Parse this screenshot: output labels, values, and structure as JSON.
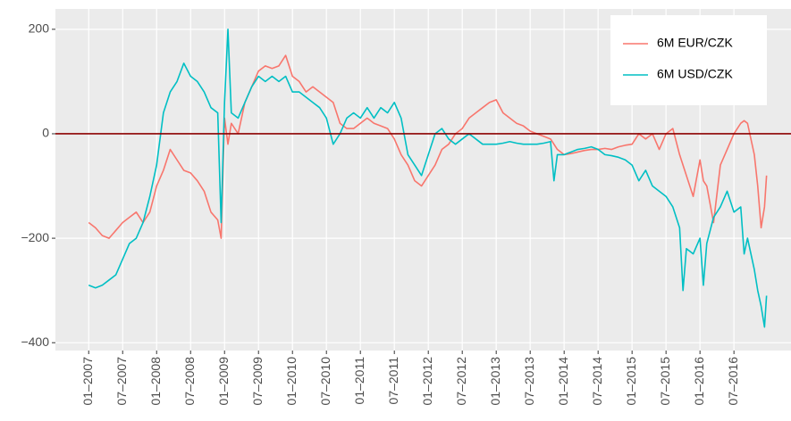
{
  "chart_data": {
    "type": "line",
    "x": [
      2007.0,
      2007.1,
      2007.2,
      2007.3,
      2007.4,
      2007.5,
      2007.6,
      2007.7,
      2007.8,
      2007.9,
      2008.0,
      2008.1,
      2008.2,
      2008.3,
      2008.4,
      2008.5,
      2008.6,
      2008.7,
      2008.8,
      2008.9,
      2008.95,
      2009.0,
      2009.05,
      2009.1,
      2009.2,
      2009.3,
      2009.4,
      2009.5,
      2009.6,
      2009.7,
      2009.8,
      2009.9,
      2010.0,
      2010.1,
      2010.2,
      2010.3,
      2010.4,
      2010.5,
      2010.6,
      2010.7,
      2010.8,
      2010.9,
      2011.0,
      2011.1,
      2011.2,
      2011.3,
      2011.4,
      2011.5,
      2011.6,
      2011.7,
      2011.8,
      2011.9,
      2012.0,
      2012.1,
      2012.2,
      2012.3,
      2012.4,
      2012.5,
      2012.6,
      2012.7,
      2012.8,
      2012.9,
      2013.0,
      2013.1,
      2013.2,
      2013.3,
      2013.4,
      2013.5,
      2013.6,
      2013.7,
      2013.8,
      2013.85,
      2013.9,
      2014.0,
      2014.1,
      2014.2,
      2014.3,
      2014.4,
      2014.5,
      2014.6,
      2014.7,
      2014.8,
      2014.9,
      2015.0,
      2015.1,
      2015.2,
      2015.3,
      2015.4,
      2015.5,
      2015.6,
      2015.7,
      2015.75,
      2015.8,
      2015.9,
      2016.0,
      2016.05,
      2016.1,
      2016.2,
      2016.3,
      2016.4,
      2016.5,
      2016.6,
      2016.65,
      2016.7,
      2016.8,
      2016.85,
      2016.9,
      2016.95,
      2016.98
    ],
    "series": [
      {
        "name": "6M EUR/CZK",
        "color": "#f8766d",
        "values": [
          -170,
          -180,
          -195,
          -200,
          -185,
          -170,
          -160,
          -150,
          -170,
          -150,
          -100,
          -70,
          -30,
          -50,
          -70,
          -75,
          -90,
          -110,
          -150,
          -165,
          -200,
          30,
          -20,
          20,
          0,
          60,
          90,
          120,
          130,
          125,
          130,
          150,
          110,
          100,
          80,
          90,
          80,
          70,
          60,
          20,
          10,
          10,
          20,
          30,
          20,
          15,
          10,
          -10,
          -40,
          -60,
          -90,
          -100,
          -80,
          -60,
          -30,
          -20,
          0,
          10,
          30,
          40,
          50,
          60,
          65,
          40,
          30,
          20,
          15,
          5,
          0,
          -5,
          -10,
          -20,
          -30,
          -40,
          -38,
          -35,
          -32,
          -30,
          -30,
          -28,
          -30,
          -25,
          -22,
          -20,
          0,
          -10,
          0,
          -30,
          0,
          10,
          -40,
          -60,
          -80,
          -120,
          -50,
          -90,
          -100,
          -170,
          -60,
          -30,
          0,
          20,
          25,
          20,
          -40,
          -100,
          -180,
          -140,
          -80
        ]
      },
      {
        "name": "6M USD/CZK",
        "color": "#00bfc4",
        "values": [
          -290,
          -295,
          -290,
          -280,
          -270,
          -240,
          -210,
          -200,
          -170,
          -120,
          -60,
          40,
          80,
          100,
          135,
          110,
          100,
          80,
          50,
          40,
          -170,
          60,
          200,
          40,
          30,
          60,
          90,
          110,
          100,
          110,
          100,
          110,
          80,
          80,
          70,
          60,
          50,
          30,
          -20,
          0,
          30,
          40,
          30,
          50,
          30,
          50,
          40,
          60,
          30,
          -40,
          -60,
          -80,
          -40,
          0,
          10,
          -10,
          -20,
          -10,
          0,
          -10,
          -20,
          -20,
          -20,
          -18,
          -15,
          -18,
          -20,
          -20,
          -20,
          -18,
          -15,
          -90,
          -40,
          -40,
          -35,
          -30,
          -28,
          -25,
          -30,
          -40,
          -42,
          -45,
          -50,
          -60,
          -90,
          -70,
          -100,
          -110,
          -120,
          -140,
          -180,
          -300,
          -220,
          -230,
          -200,
          -290,
          -210,
          -160,
          -140,
          -110,
          -150,
          -140,
          -230,
          -200,
          -260,
          -300,
          -330,
          -370,
          -310
        ]
      }
    ],
    "xlim": [
      2006.51,
      2017.34
    ],
    "xticks": [
      {
        "value": 2007,
        "label": "01–2007"
      },
      {
        "value": 2007.5,
        "label": "07–2007"
      },
      {
        "value": 2008,
        "label": "01–2008"
      },
      {
        "value": 2008.5,
        "label": "07–2008"
      },
      {
        "value": 2009,
        "label": "01–2009"
      },
      {
        "value": 2009.5,
        "label": "07–2009"
      },
      {
        "value": 2010,
        "label": "01–2010"
      },
      {
        "value": 2010.5,
        "label": "07–2010"
      },
      {
        "value": 2011,
        "label": "01–2011"
      },
      {
        "value": 2011.5,
        "label": "07–2011"
      },
      {
        "value": 2012,
        "label": "01–2012"
      },
      {
        "value": 2012.5,
        "label": "07–2012"
      },
      {
        "value": 2013,
        "label": "01–2013"
      },
      {
        "value": 2013.5,
        "label": "07–2013"
      },
      {
        "value": 2014,
        "label": "01–2014"
      },
      {
        "value": 2014.5,
        "label": "07–2014"
      },
      {
        "value": 2015,
        "label": "01–2015"
      },
      {
        "value": 2015.5,
        "label": "07–2015"
      },
      {
        "value": 2016,
        "label": "01–2016"
      },
      {
        "value": 2016.5,
        "label": "07–2016"
      }
    ],
    "ylim": [
      -415,
      239
    ],
    "yticks": [
      {
        "value": -400,
        "label": "−400"
      },
      {
        "value": -200,
        "label": "−200"
      },
      0,
      200
    ],
    "hline": {
      "value": 0,
      "color": "#8b0000"
    },
    "grid": true,
    "legend": "top-right"
  }
}
